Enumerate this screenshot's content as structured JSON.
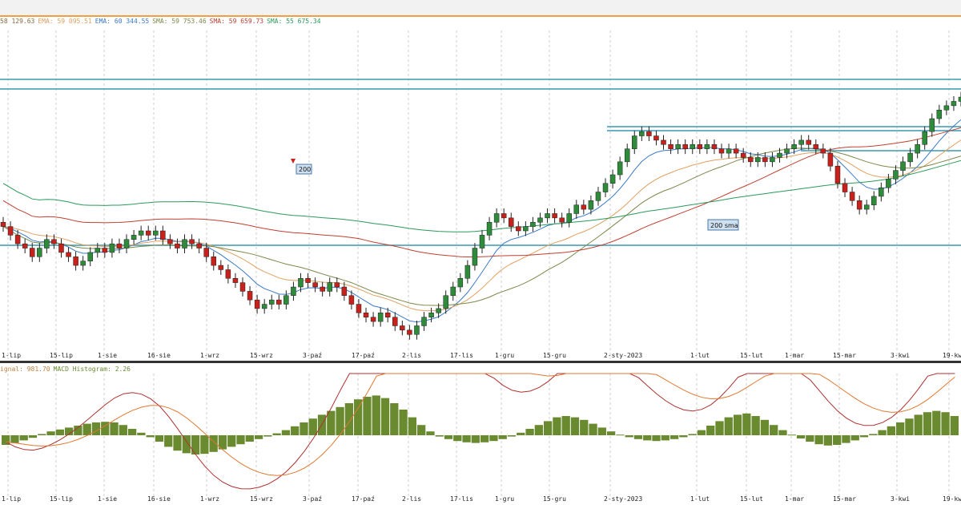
{
  "legend_main": [
    {
      "text": "58 129.63",
      "color": "#8a6a3a"
    },
    {
      "text": "EMA: 59 095.51",
      "color": "#e0a060"
    },
    {
      "text": "EMA: 60 344.55",
      "color": "#3a7ac8"
    },
    {
      "text": "SMA: 59 753.46",
      "color": "#7a8a4a"
    },
    {
      "text": "SMA: 59 659.73",
      "color": "#c04030"
    },
    {
      "text": "SMA: 55 675.34",
      "color": "#2a9a5a"
    }
  ],
  "legend_macd": [
    {
      "text": "ignal: 981.70",
      "color": "#c08040"
    },
    {
      "text": "MACD Histogram: 2.26",
      "color": "#6a8a30"
    }
  ],
  "annotations": {
    "arrow_label": "200",
    "sma_label": "200 sma"
  },
  "chart_data": [
    {
      "type": "candlestick",
      "title": "",
      "x_tick_labels": [
        "1-lip",
        "15-lip",
        "1-sie",
        "16-sie",
        "1-wrz",
        "15-wrz",
        "3-paź",
        "17-paź",
        "2-lis",
        "17-lis",
        "1-gru",
        "15-gru",
        "2-sty-2023",
        "1-lut",
        "15-lut",
        "1-mar",
        "15-mar",
        "3-kwi",
        "19-kwi"
      ],
      "grid": true,
      "series_close": [
        62,
        60,
        58,
        57,
        55,
        57,
        59,
        58,
        56,
        55,
        53,
        54,
        56,
        57,
        56,
        58,
        57,
        59,
        60,
        61,
        60,
        61,
        59,
        58,
        57,
        59,
        58,
        57,
        55,
        53,
        52,
        50,
        49,
        47,
        45,
        43,
        44,
        45,
        44,
        46,
        48,
        50,
        49,
        48,
        47,
        49,
        48,
        46,
        44,
        42,
        41,
        40,
        42,
        41,
        39,
        38,
        37,
        39,
        41,
        42,
        43,
        46,
        48,
        50,
        53,
        57,
        60,
        63,
        65,
        64,
        62,
        61,
        62,
        63,
        64,
        65,
        64,
        63,
        65,
        67,
        66,
        68,
        70,
        72,
        74,
        77,
        80,
        83,
        84,
        83,
        82,
        81,
        80,
        81,
        80,
        81,
        80,
        81,
        80,
        79,
        80,
        79,
        78,
        77,
        78,
        77,
        78,
        79,
        80,
        81,
        82,
        81,
        80,
        79,
        76,
        72,
        70,
        68,
        66,
        67,
        69,
        71,
        73,
        75,
        77,
        79,
        81,
        84,
        87,
        89,
        90,
        91,
        92
      ],
      "moving_averages": [
        "EMA",
        "EMA",
        "SMA",
        "SMA",
        "SMA 200"
      ]
    },
    {
      "type": "macd",
      "x_tick_labels": [
        "1-lip",
        "15-lip",
        "1-sie",
        "16-sie",
        "1-wrz",
        "15-wrz",
        "3-paź",
        "17-paź",
        "2-lis",
        "17-lis",
        "1-gru",
        "15-gru",
        "2-sty-2023",
        "1-lut",
        "15-lut",
        "1-mar",
        "15-mar",
        "3-kwi",
        "19-kwi"
      ],
      "histogram": [
        -1.5,
        -1.2,
        -0.8,
        -0.4,
        0.2,
        0.6,
        0.9,
        1.2,
        1.5,
        1.8,
        2.0,
        2.1,
        2.0,
        1.6,
        1.0,
        0.4,
        -0.3,
        -1.0,
        -1.8,
        -2.4,
        -2.8,
        -3.0,
        -2.9,
        -2.6,
        -2.2,
        -1.8,
        -1.4,
        -1.0,
        -0.6,
        -0.2,
        0.3,
        0.8,
        1.4,
        2.0,
        2.6,
        3.2,
        3.8,
        4.4,
        5.0,
        5.6,
        6.0,
        6.2,
        5.8,
        5.0,
        4.0,
        2.8,
        1.6,
        0.6,
        -0.2,
        -0.6,
        -0.9,
        -1.1,
        -1.2,
        -1.1,
        -0.9,
        -0.6,
        -0.2,
        0.4,
        1.0,
        1.6,
        2.2,
        2.8,
        3.0,
        2.8,
        2.4,
        1.8,
        1.2,
        0.6,
        0.1,
        -0.3,
        -0.6,
        -0.8,
        -0.9,
        -0.8,
        -0.6,
        -0.3,
        0.2,
        0.8,
        1.5,
        2.2,
        2.8,
        3.2,
        3.4,
        3.0,
        2.4,
        1.6,
        0.8,
        0.1,
        -0.5,
        -1.0,
        -1.4,
        -1.6,
        -1.5,
        -1.2,
        -0.8,
        -0.3,
        0.2,
        0.8,
        1.4,
        2.0,
        2.6,
        3.2,
        3.6,
        3.8,
        3.6,
        3.0
      ]
    }
  ]
}
